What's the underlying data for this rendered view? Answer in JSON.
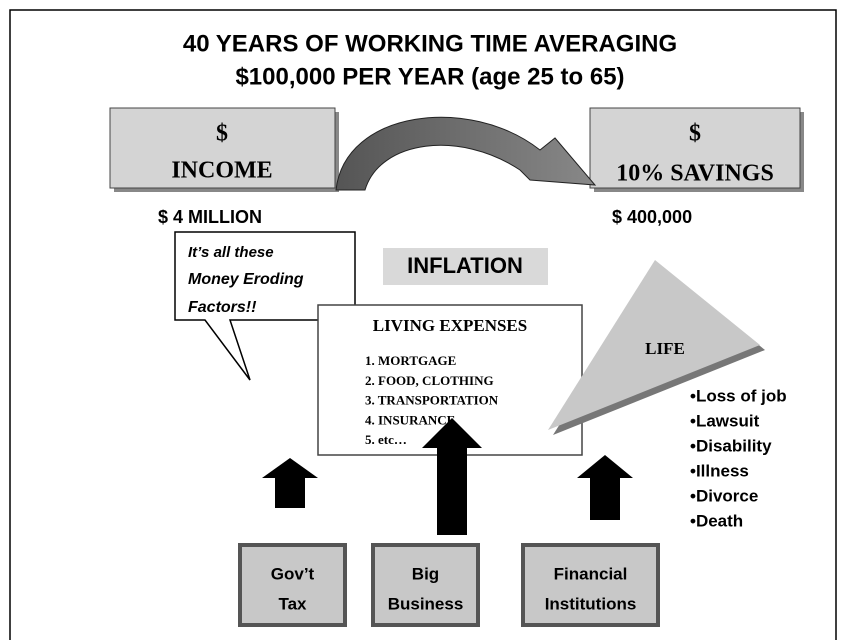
{
  "title": [
    "40 YEARS OF WORKING TIME AVERAGING",
    "$100,000 PER YEAR (age 25 to 65)"
  ],
  "income": {
    "symbol": "$",
    "label": "INCOME",
    "amount": "$ 4 MILLION"
  },
  "savings": {
    "symbol": "$",
    "label": "10% SAVINGS",
    "amount": "$ 400,000"
  },
  "callout": [
    "It’s all these",
    "Money Eroding",
    "Factors!!"
  ],
  "inflation": "INFLATION",
  "living_expenses": {
    "title": "LIVING EXPENSES",
    "items": [
      "1. MORTGAGE",
      "2. FOOD, CLOTHING",
      "3. TRANSPORTATION",
      "4. INSURANCE",
      "5. etc…"
    ]
  },
  "life": {
    "label": "LIFE",
    "items": [
      "•Loss of job",
      "•Lawsuit",
      "•Disability",
      "•Illness",
      "•Divorce",
      "•Death"
    ]
  },
  "factors": [
    [
      "Gov’t",
      "Tax"
    ],
    [
      "Big",
      "Business"
    ],
    [
      "Financial",
      "Institutions"
    ]
  ]
}
